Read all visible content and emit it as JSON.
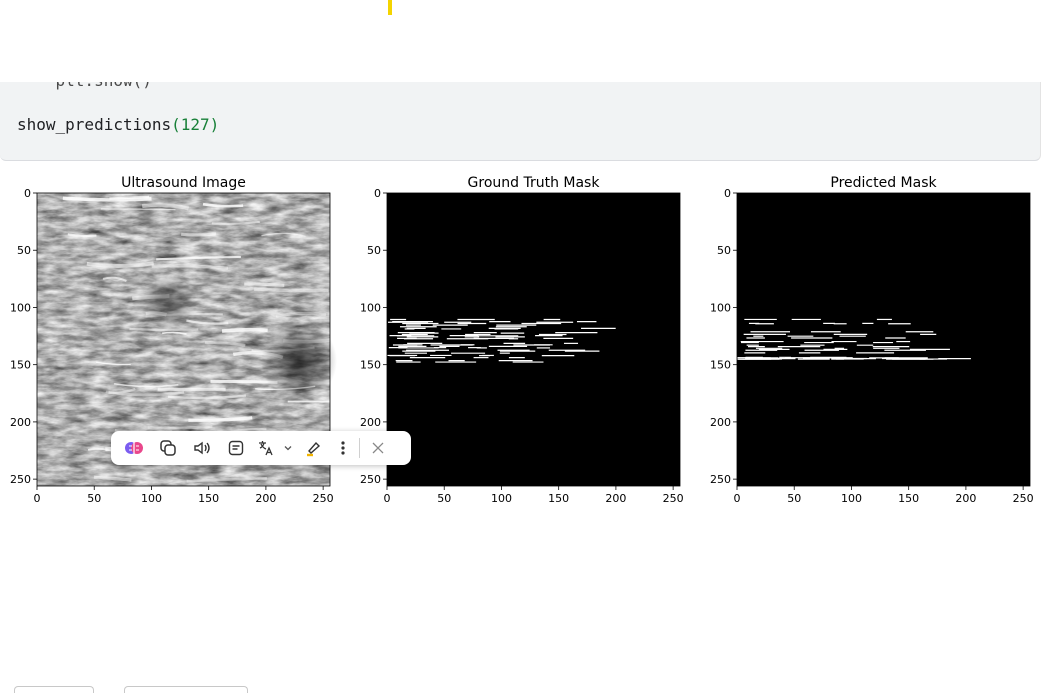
{
  "code": {
    "cut_line": "    plt.show()",
    "call_name": "show_predictions",
    "call_open": "(",
    "call_arg": "127",
    "call_close": ")"
  },
  "panels": [
    {
      "title": "Ultrasound Image"
    },
    {
      "title": "Ground Truth Mask"
    },
    {
      "title": "Predicted Mask"
    }
  ],
  "axes": {
    "xticks": [
      "0",
      "50",
      "100",
      "150",
      "200",
      "250"
    ],
    "yticks": [
      "0",
      "50",
      "100",
      "150",
      "200",
      "250"
    ]
  },
  "toolbar": {
    "icons": [
      "ai-brain-icon",
      "copy-icon",
      "read-aloud-icon",
      "summarize-icon",
      "translate-icon",
      "chevron-down-icon",
      "highlight-icon",
      "more-icon",
      "close-icon"
    ]
  },
  "colors": {
    "cell_bg": "#f1f3f4",
    "number_color": "#188038",
    "attr_color": "#1a73e8",
    "highlight": "#f4d400"
  }
}
